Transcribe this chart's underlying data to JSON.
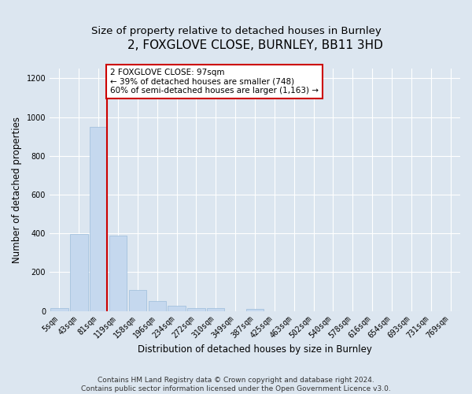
{
  "title": "2, FOXGLOVE CLOSE, BURNLEY, BB11 3HD",
  "subtitle": "Size of property relative to detached houses in Burnley",
  "xlabel": "Distribution of detached houses by size in Burnley",
  "ylabel": "Number of detached properties",
  "categories": [
    "5sqm",
    "43sqm",
    "81sqm",
    "119sqm",
    "158sqm",
    "196sqm",
    "234sqm",
    "272sqm",
    "310sqm",
    "349sqm",
    "387sqm",
    "425sqm",
    "463sqm",
    "502sqm",
    "540sqm",
    "578sqm",
    "616sqm",
    "654sqm",
    "693sqm",
    "731sqm",
    "769sqm"
  ],
  "values": [
    15,
    395,
    950,
    390,
    110,
    52,
    25,
    15,
    13,
    0,
    12,
    0,
    0,
    0,
    0,
    0,
    0,
    0,
    0,
    0,
    0
  ],
  "bar_color": "#c5d8ee",
  "bar_edge_color": "#9bbcdb",
  "vline_color": "#cc0000",
  "annotation_text": "2 FOXGLOVE CLOSE: 97sqm\n← 39% of detached houses are smaller (748)\n60% of semi-detached houses are larger (1,163) →",
  "annotation_box_color": "white",
  "annotation_box_edge": "#cc0000",
  "ylim": [
    0,
    1250
  ],
  "yticks": [
    0,
    200,
    400,
    600,
    800,
    1000,
    1200
  ],
  "bg_color": "#dce6f0",
  "plot_bg_color": "#dce6f0",
  "footer": "Contains HM Land Registry data © Crown copyright and database right 2024.\nContains public sector information licensed under the Open Government Licence v3.0.",
  "title_fontsize": 11,
  "subtitle_fontsize": 9.5,
  "xlabel_fontsize": 8.5,
  "ylabel_fontsize": 8.5,
  "tick_fontsize": 7,
  "footer_fontsize": 6.5
}
